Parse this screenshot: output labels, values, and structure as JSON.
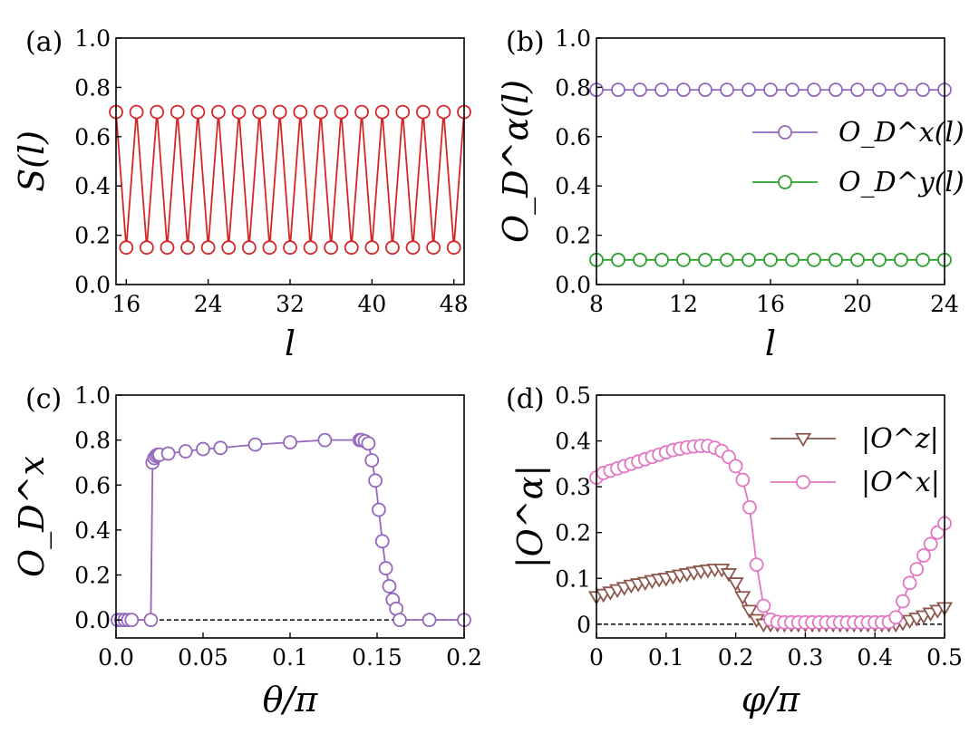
{
  "chart_data": [
    {
      "panel": "(a)",
      "type": "line",
      "title": "",
      "xlabel": "l",
      "ylabel": "S(l)",
      "xlim": [
        15,
        49
      ],
      "ylim": [
        0,
        1
      ],
      "xticks": [
        16,
        24,
        32,
        40,
        48
      ],
      "xtick_labels": [
        "16",
        "24",
        "32",
        "40",
        "48"
      ],
      "yticks": [
        0,
        0.2,
        0.4,
        0.6,
        0.8,
        1.0
      ],
      "ytick_labels": [
        "0.0",
        "0.2",
        "0.4",
        "0.6",
        "0.8",
        "1.0"
      ],
      "series": [
        {
          "name": "S(l)",
          "color": "#d62728",
          "marker": "circle",
          "x": [
            15,
            16,
            17,
            18,
            19,
            20,
            21,
            22,
            23,
            24,
            25,
            26,
            27,
            28,
            29,
            30,
            31,
            32,
            33,
            34,
            35,
            36,
            37,
            38,
            39,
            40,
            41,
            42,
            43,
            44,
            45,
            46,
            47,
            48,
            49
          ],
          "y": [
            0.7,
            0.15,
            0.7,
            0.15,
            0.7,
            0.15,
            0.7,
            0.15,
            0.7,
            0.15,
            0.7,
            0.15,
            0.7,
            0.15,
            0.7,
            0.15,
            0.7,
            0.15,
            0.7,
            0.15,
            0.7,
            0.15,
            0.7,
            0.15,
            0.7,
            0.15,
            0.7,
            0.15,
            0.7,
            0.15,
            0.7,
            0.15,
            0.7,
            0.15,
            0.7
          ]
        }
      ]
    },
    {
      "panel": "(b)",
      "type": "line",
      "title": "",
      "xlabel": "l",
      "ylabel": "O_D^α(l)",
      "xlim": [
        8,
        24
      ],
      "ylim": [
        0,
        1
      ],
      "xticks": [
        8,
        12,
        16,
        20,
        24
      ],
      "xtick_labels": [
        "8",
        "12",
        "16",
        "20",
        "24"
      ],
      "yticks": [
        0,
        0.2,
        0.4,
        0.6,
        0.8,
        1.0
      ],
      "ytick_labels": [
        "0.0",
        "0.2",
        "0.4",
        "0.6",
        "0.8",
        "1.0"
      ],
      "legend": "top-right",
      "series": [
        {
          "name": "O_D^x(l)",
          "color": "#9467bd",
          "marker": "circle",
          "x": [
            8,
            9,
            10,
            11,
            12,
            13,
            14,
            15,
            16,
            17,
            18,
            19,
            20,
            21,
            22,
            23,
            24
          ],
          "y": [
            0.79,
            0.79,
            0.79,
            0.79,
            0.79,
            0.79,
            0.79,
            0.79,
            0.79,
            0.79,
            0.79,
            0.79,
            0.79,
            0.79,
            0.79,
            0.79,
            0.79
          ]
        },
        {
          "name": "O_D^y(l)",
          "color": "#2ca02c",
          "marker": "circle",
          "x": [
            8,
            9,
            10,
            11,
            12,
            13,
            14,
            15,
            16,
            17,
            18,
            19,
            20,
            21,
            22,
            23,
            24
          ],
          "y": [
            0.1,
            0.1,
            0.1,
            0.1,
            0.1,
            0.1,
            0.1,
            0.1,
            0.1,
            0.1,
            0.1,
            0.1,
            0.1,
            0.1,
            0.1,
            0.1,
            0.1
          ]
        }
      ]
    },
    {
      "panel": "(c)",
      "type": "line",
      "title": "",
      "xlabel": "θ/π",
      "ylabel": "O_D^x",
      "xlim": [
        0,
        0.2
      ],
      "ylim": [
        -0.08,
        1
      ],
      "xticks": [
        0,
        0.05,
        0.1,
        0.15,
        0.2
      ],
      "xtick_labels": [
        "0.0",
        "0.05",
        "0.1",
        "0.15",
        "0.2"
      ],
      "yticks": [
        0,
        0.2,
        0.4,
        0.6,
        0.8,
        1.0
      ],
      "ytick_labels": [
        "0.0",
        "0.2",
        "0.4",
        "0.6",
        "0.8",
        "1.0"
      ],
      "zero_line": true,
      "series": [
        {
          "name": "O_D^x",
          "color": "#9467bd",
          "marker": "circle",
          "x": [
            0.001,
            0.003,
            0.005,
            0.007,
            0.009,
            0.02,
            0.021,
            0.022,
            0.023,
            0.024,
            0.025,
            0.03,
            0.04,
            0.05,
            0.06,
            0.08,
            0.1,
            0.12,
            0.14,
            0.141,
            0.143,
            0.145,
            0.147,
            0.149,
            0.151,
            0.153,
            0.155,
            0.157,
            0.159,
            0.161,
            0.163,
            0.18,
            0.2
          ],
          "y": [
            0.0,
            0.0,
            0.0,
            0.0,
            0.0,
            0.0,
            0.7,
            0.72,
            0.73,
            0.735,
            0.735,
            0.74,
            0.75,
            0.76,
            0.765,
            0.78,
            0.79,
            0.8,
            0.8,
            0.8,
            0.795,
            0.785,
            0.71,
            0.62,
            0.49,
            0.35,
            0.23,
            0.15,
            0.09,
            0.05,
            0.0,
            0.0,
            0.0
          ]
        }
      ]
    },
    {
      "panel": "(d)",
      "type": "line",
      "title": "",
      "xlabel": "φ/π",
      "ylabel": "|O^α|",
      "xlim": [
        0,
        0.5
      ],
      "ylim": [
        -0.03,
        0.5
      ],
      "xticks": [
        0,
        0.1,
        0.2,
        0.3,
        0.4,
        0.5
      ],
      "xtick_labels": [
        "0",
        "0.1",
        "0.2",
        "0.3",
        "0.4",
        "0.5"
      ],
      "yticks": [
        0,
        0.1,
        0.2,
        0.3,
        0.4,
        0.5
      ],
      "ytick_labels": [
        "0",
        "0.1",
        "0.2",
        "0.3",
        "0.4",
        "0.5"
      ],
      "zero_line": true,
      "legend": "top-right",
      "series": [
        {
          "name": "|O^z|",
          "color": "#8c564b",
          "marker": "triangle-down",
          "x": [
            0,
            0.01,
            0.02,
            0.03,
            0.04,
            0.05,
            0.06,
            0.07,
            0.08,
            0.09,
            0.1,
            0.11,
            0.12,
            0.13,
            0.14,
            0.15,
            0.16,
            0.17,
            0.18,
            0.19,
            0.2,
            0.21,
            0.22,
            0.23,
            0.24,
            0.25,
            0.26,
            0.27,
            0.28,
            0.29,
            0.3,
            0.31,
            0.32,
            0.33,
            0.34,
            0.35,
            0.36,
            0.37,
            0.38,
            0.39,
            0.4,
            0.41,
            0.42,
            0.43,
            0.44,
            0.45,
            0.46,
            0.47,
            0.48,
            0.49,
            0.5
          ],
          "y": [
            0.06,
            0.065,
            0.07,
            0.075,
            0.08,
            0.085,
            0.088,
            0.091,
            0.095,
            0.098,
            0.1,
            0.104,
            0.107,
            0.11,
            0.113,
            0.116,
            0.118,
            0.12,
            0.12,
            0.11,
            0.09,
            0.06,
            0.03,
            0.01,
            0.0,
            0.0,
            0.0,
            0.0,
            0.0,
            0.0,
            0.0,
            0.0,
            0.0,
            0.0,
            0.0,
            0.0,
            0.0,
            0.0,
            0.0,
            0.0,
            0.0,
            0.0,
            0.0,
            0.0,
            0.003,
            0.008,
            0.013,
            0.018,
            0.024,
            0.03,
            0.036
          ]
        },
        {
          "name": "|O^x|",
          "color": "#e377c2",
          "marker": "circle",
          "x": [
            0,
            0.01,
            0.02,
            0.03,
            0.04,
            0.05,
            0.06,
            0.07,
            0.08,
            0.09,
            0.1,
            0.11,
            0.12,
            0.13,
            0.14,
            0.15,
            0.16,
            0.17,
            0.18,
            0.19,
            0.2,
            0.21,
            0.22,
            0.23,
            0.24,
            0.25,
            0.26,
            0.27,
            0.28,
            0.29,
            0.3,
            0.31,
            0.32,
            0.33,
            0.34,
            0.35,
            0.36,
            0.37,
            0.38,
            0.39,
            0.4,
            0.41,
            0.42,
            0.43,
            0.44,
            0.45,
            0.46,
            0.47,
            0.48,
            0.49,
            0.5
          ],
          "y": [
            0.32,
            0.33,
            0.335,
            0.34,
            0.345,
            0.35,
            0.355,
            0.36,
            0.365,
            0.37,
            0.375,
            0.38,
            0.383,
            0.386,
            0.388,
            0.389,
            0.389,
            0.385,
            0.378,
            0.365,
            0.345,
            0.315,
            0.255,
            0.13,
            0.04,
            0.01,
            0.005,
            0.004,
            0.004,
            0.004,
            0.004,
            0.004,
            0.004,
            0.004,
            0.004,
            0.004,
            0.004,
            0.004,
            0.004,
            0.004,
            0.004,
            0.004,
            0.005,
            0.015,
            0.05,
            0.09,
            0.12,
            0.15,
            0.175,
            0.2,
            0.22
          ]
        }
      ]
    }
  ]
}
